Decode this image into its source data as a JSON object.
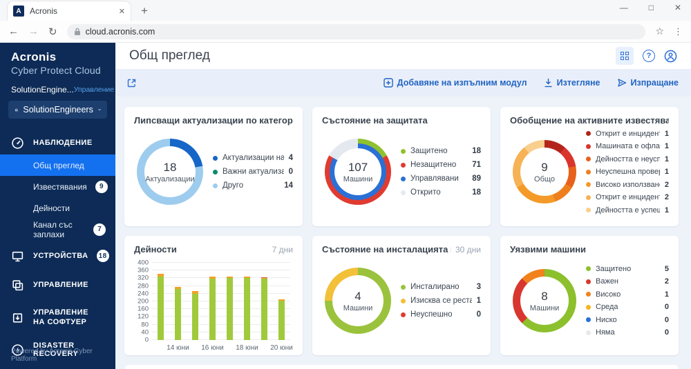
{
  "browser": {
    "tab_title": "Acronis",
    "url": "cloud.acronis.com"
  },
  "sidebar": {
    "logo_line1": "Acronis",
    "logo_line2": "Cyber Protect Cloud",
    "account_name": "SolutionEngine...",
    "manage_link": "Управление",
    "org_selector": "SolutionEngineers",
    "items": [
      {
        "label": "НАБЛЮДЕНИЕ"
      },
      {
        "label": "Общ преглед"
      },
      {
        "label": "Известявания",
        "badge": "9"
      },
      {
        "label": "Дейности"
      },
      {
        "label": "Канал със заплахи",
        "badge": "7"
      },
      {
        "label": "УСТРОЙСТВА",
        "badge": "18"
      },
      {
        "label": "УПРАВЛЕНИЕ"
      },
      {
        "label": "УПРАВЛЕНИЕ НА СОФТУЕР"
      },
      {
        "label": "DISASTER RECOVERY"
      }
    ],
    "footer": "Powered by Acronis Cyber Platform"
  },
  "header": {
    "title": "Общ преглед"
  },
  "widget_bar": {
    "add_widget": "Добавяне на изпълним модул",
    "download": "Изтегляне",
    "send": "Изпращане"
  },
  "chart_data": [
    {
      "type": "donut",
      "title": "Липсващи актуализации по категории",
      "center_value": "18",
      "center_label": "Актуализации",
      "legend": [
        {
          "label": "Актуализации на за...",
          "value": 4,
          "color": "#1666c8"
        },
        {
          "label": "Важни актуализации",
          "value": 0,
          "color": "#0b8a70"
        },
        {
          "label": "Друго",
          "value": 14,
          "color": "#9dccee"
        }
      ]
    },
    {
      "type": "donut",
      "title": "Състояние на защитата",
      "center_value": "107",
      "center_label": "Машини",
      "legend": [
        {
          "label": "Защитено",
          "value": 18,
          "color": "#90c12d"
        },
        {
          "label": "Незащитено",
          "value": 71,
          "color": "#e03b31"
        },
        {
          "label": "Управлявани",
          "value": 89,
          "color": "#2a70d6"
        },
        {
          "label": "Открито",
          "value": 18,
          "color": "#e4e9f0"
        }
      ],
      "ring_outer": [
        {
          "value": 18,
          "color": "#90c12d"
        },
        {
          "value": 71,
          "color": "#e03b31"
        },
        {
          "value": 18,
          "color": "#e4e9f0"
        }
      ],
      "ring_inner": [
        {
          "value": 89,
          "color": "#2a70d6"
        },
        {
          "value": 18,
          "color": "#e4e9f0"
        }
      ]
    },
    {
      "type": "donut",
      "title": "Обобщение на активните известявания",
      "center_value": "9",
      "center_label": "Общо",
      "legend": [
        {
          "label": "Открит е инцидент",
          "value": 1,
          "color": "#b3251c"
        },
        {
          "label": "Машината е офлайн ...",
          "value": 1,
          "color": "#d9352c"
        },
        {
          "label": "Дейността е неуспеш...",
          "value": 1,
          "color": "#e8611c"
        },
        {
          "label": "Неуспешна проверка",
          "value": 1,
          "color": "#ef7f1e"
        },
        {
          "label": "Високо използване н...",
          "value": 2,
          "color": "#f39a28"
        },
        {
          "label": "Открит е инцидент",
          "value": 2,
          "color": "#f6b254"
        },
        {
          "label": "Дейността е успешна...",
          "value": 1,
          "color": "#f8cf8c"
        }
      ]
    },
    {
      "type": "bar",
      "title": "Дейности",
      "period": "7 дни",
      "ylim": [
        0,
        400
      ],
      "ytick_step": 40,
      "x_labels": [
        "",
        "14 юни",
        "",
        "16 юни",
        "",
        "18 юни",
        "",
        "20 юни"
      ],
      "series": [
        {
          "name": "success",
          "color": "#a0ca3c",
          "values": [
            330,
            263,
            241,
            319,
            322,
            322,
            318,
            202
          ]
        },
        {
          "name": "warning",
          "color": "#f2a229",
          "values": [
            12,
            13,
            11,
            11,
            8,
            8,
            4,
            8
          ]
        },
        {
          "name": "error",
          "color": "#d85c50",
          "values": [
            0,
            0,
            0,
            0,
            0,
            0,
            4,
            0
          ]
        }
      ]
    },
    {
      "type": "donut",
      "title": "Състояние на инсталацията на корекции",
      "period": "30 дни",
      "center_value": "4",
      "center_label": "Машини",
      "legend": [
        {
          "label": "Инсталирано",
          "value": 3,
          "color": "#9bc23c"
        },
        {
          "label": "Изисква се рестартир...",
          "value": 1,
          "color": "#f3c03a"
        },
        {
          "label": "Неуспешно",
          "value": 0,
          "color": "#e03c32"
        }
      ]
    },
    {
      "type": "donut",
      "title": "Уязвими машини",
      "center_value": "8",
      "center_label": "Машини",
      "legend": [
        {
          "label": "Защитено",
          "value": 5,
          "color": "#8cc02c"
        },
        {
          "label": "Важен",
          "value": 2,
          "color": "#d8372f"
        },
        {
          "label": "Високо",
          "value": 1,
          "color": "#f2821d"
        },
        {
          "label": "Среда",
          "value": 0,
          "color": "#f5b51f"
        },
        {
          "label": "Ниско",
          "value": 0,
          "color": "#2a70d6"
        },
        {
          "label": "Няма",
          "value": 0,
          "color": "#e9e9e9"
        }
      ]
    }
  ]
}
